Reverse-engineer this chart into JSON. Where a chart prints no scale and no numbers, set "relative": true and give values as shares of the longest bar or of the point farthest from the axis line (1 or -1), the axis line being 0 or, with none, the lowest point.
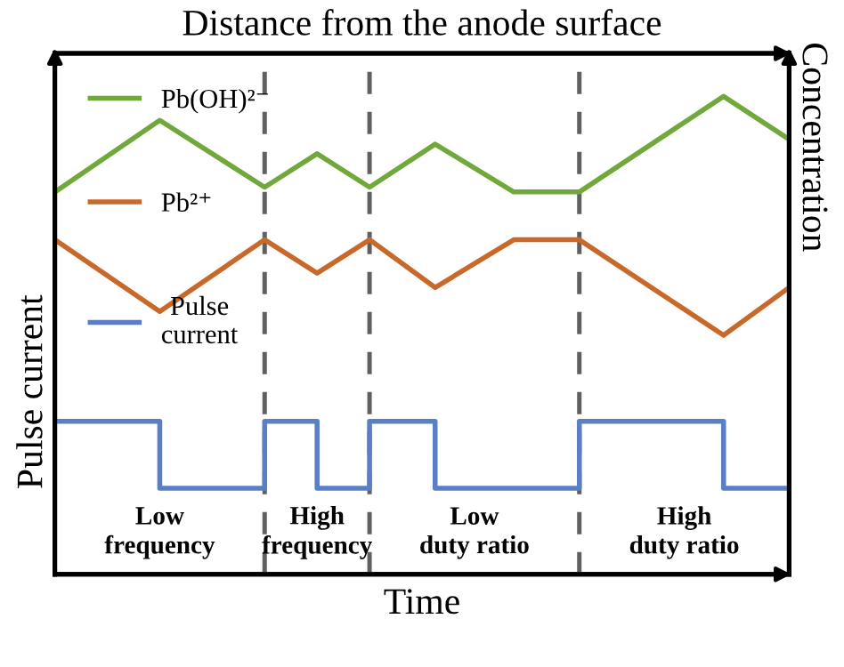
{
  "chart_data": {
    "type": "line",
    "relative": true,
    "x2label": "Distance from the anode surface",
    "xlabel": "Time",
    "ylabel": "Pulse current",
    "y2label": "Concentration",
    "categories": [
      null,
      null,
      null,
      null,
      null,
      null,
      null,
      null,
      null,
      null,
      null,
      null,
      null,
      null,
      null,
      null,
      null,
      null,
      null,
      null,
      null,
      null,
      null,
      null,
      null,
      null,
      null,
      null,
      null,
      null,
      null,
      null,
      null,
      null,
      null,
      null,
      null,
      null,
      null,
      null,
      null,
      null,
      null,
      null,
      null,
      null,
      null,
      null,
      null,
      null,
      null,
      null,
      null,
      null,
      null,
      null,
      null
    ],
    "legend": "top left",
    "grid": "x",
    "line_style": "solid",
    "series": [
      {
        "name": "Pb(OH)²⁻",
        "color": "#70a83c",
        "values": [
          0.8,
          null,
          null,
          null,
          null,
          null,
          null,
          null,
          0.95,
          null,
          null,
          null,
          null,
          null,
          null,
          null,
          0.81,
          null,
          null,
          null,
          0.88,
          null,
          null,
          null,
          0.81,
          null,
          null,
          null,
          null,
          0.9,
          null,
          null,
          null,
          null,
          null,
          0.8,
          null,
          null,
          null,
          null,
          0.8,
          null,
          null,
          null,
          null,
          null,
          null,
          null,
          null,
          null,
          null,
          1.0,
          null,
          null,
          null,
          null,
          0.91
        ]
      },
      {
        "name": "Pb²⁺",
        "color": "#c8692a",
        "values": [
          0.7,
          null,
          null,
          null,
          null,
          null,
          null,
          null,
          0.55,
          null,
          null,
          null,
          null,
          null,
          null,
          null,
          0.7,
          null,
          null,
          null,
          0.63,
          null,
          null,
          null,
          0.7,
          null,
          null,
          null,
          null,
          0.6,
          null,
          null,
          null,
          null,
          null,
          0.7,
          null,
          null,
          null,
          null,
          0.7,
          null,
          null,
          null,
          null,
          null,
          null,
          null,
          null,
          null,
          null,
          0.5,
          null,
          null,
          null,
          null,
          0.6
        ]
      },
      {
        "name": "Pulse\ncurrent",
        "color": "#5b7fc4",
        "type": "step",
        "values": [
          0.32,
          null,
          null,
          null,
          null,
          null,
          null,
          null,
          0.18,
          null,
          null,
          null,
          null,
          null,
          null,
          null,
          0.32,
          null,
          null,
          null,
          0.18,
          null,
          null,
          null,
          0.32,
          null,
          null,
          null,
          null,
          0.18,
          null,
          null,
          null,
          null,
          null,
          null,
          null,
          null,
          null,
          null,
          0.32,
          null,
          null,
          null,
          null,
          null,
          null,
          null,
          null,
          null,
          null,
          0.18,
          null,
          null,
          null,
          null,
          0.18
        ]
      }
    ],
    "annotations": [
      "Low\nfrequency",
      "High\nfrequency",
      "Low\nduty ratio",
      "High\nduty ratio"
    ]
  }
}
